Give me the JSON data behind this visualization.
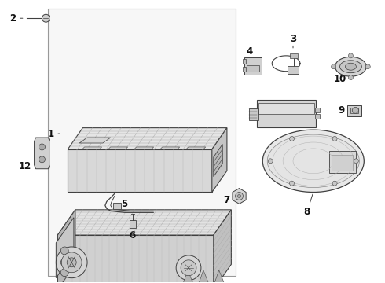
{
  "bg_color": "#ffffff",
  "fig_width": 4.9,
  "fig_height": 3.6,
  "dpi": 100,
  "line_color": "#404040",
  "light_line": "#888888",
  "fill_light": "#f0f0f0",
  "fill_mid": "#e0e0e0",
  "fill_dark": "#cccccc",
  "text_color": "#111111",
  "label_fontsize": 8.5
}
